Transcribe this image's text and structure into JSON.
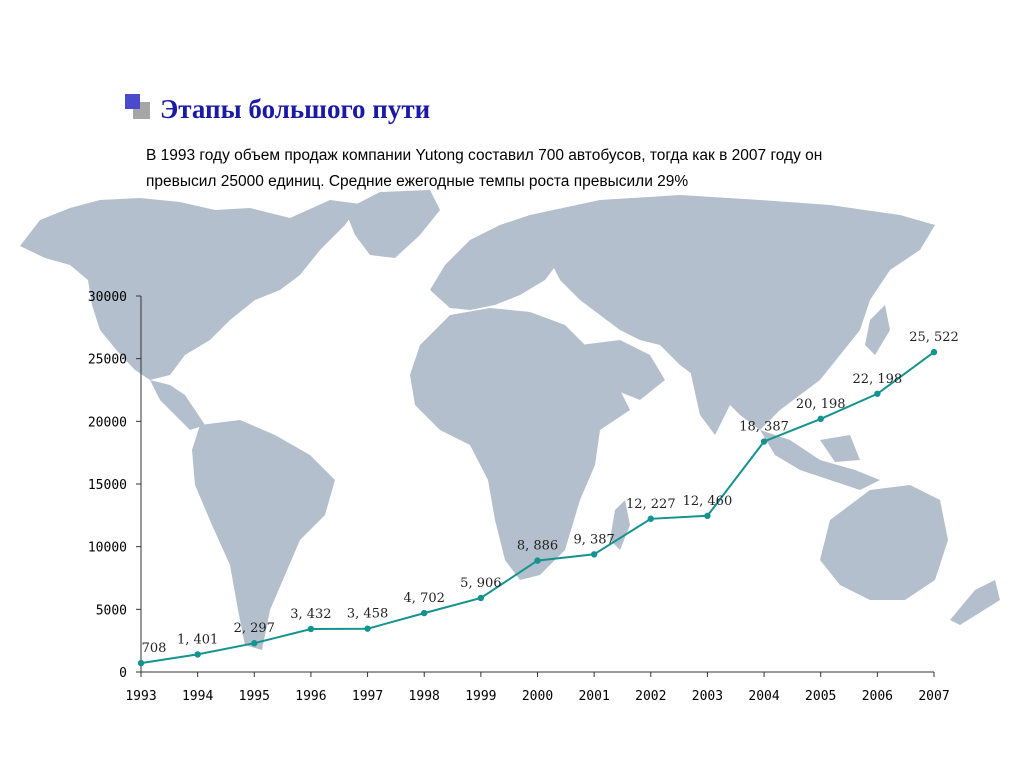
{
  "slide": {
    "title": "Этапы большого пути",
    "subtitle_line1": "В 1993 году объем продаж компании  Yutong составил  700 автобусов, тогда как в 2007 году он",
    "subtitle_line2": "превысил 25000 единиц. Средние ежегодные темпы роста превысили  29%"
  },
  "colors": {
    "title": "#1a1aa6",
    "line": "#14938f",
    "map": "#b3bfcc",
    "axis": "#333333"
  },
  "chart_data": {
    "type": "line",
    "title": "",
    "xlabel": "",
    "ylabel": "",
    "ylim": [
      0,
      30000
    ],
    "yticks": [
      "0",
      "5000",
      "10000",
      "15000",
      "20000",
      "25000",
      "30000"
    ],
    "categories": [
      "1993",
      "1994",
      "1995",
      "1996",
      "1997",
      "1998",
      "1999",
      "2000",
      "2001",
      "2002",
      "2003",
      "2004",
      "2005",
      "2006",
      "2007"
    ],
    "values": [
      708,
      1401,
      2297,
      3432,
      3458,
      4702,
      5906,
      8886,
      9387,
      12227,
      12460,
      18387,
      20198,
      22198,
      25522
    ],
    "data_labels": [
      "708",
      "1, 401",
      "2, 297",
      "3, 432",
      "3, 458",
      "4, 702",
      "5, 906",
      "8, 886",
      "9, 387",
      "12, 227",
      "12, 460",
      "18, 387",
      "20, 198",
      "22, 198",
      "25, 522"
    ],
    "grid": false,
    "legend": "none"
  }
}
